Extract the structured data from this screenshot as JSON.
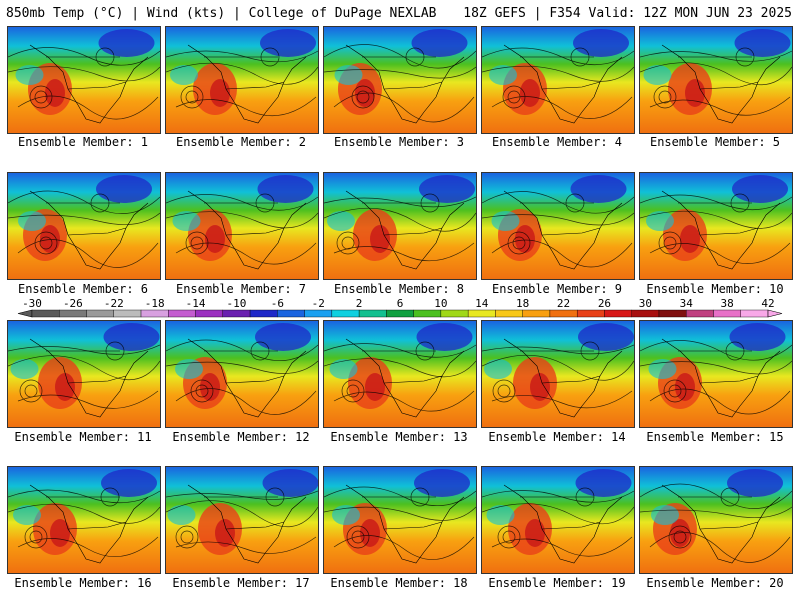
{
  "header": {
    "left": "850mb Temp (°C) | Wind (kts) | College of DuPage NEXLAB",
    "right": "18Z GEFS | F354 Valid: 12Z MON JUN 23 2025"
  },
  "member_prefix": "Ensemble Member: ",
  "members": [
    1,
    2,
    3,
    4,
    5,
    6,
    7,
    8,
    9,
    10,
    11,
    12,
    13,
    14,
    15,
    16,
    17,
    18,
    19,
    20
  ],
  "colorbar": {
    "ticks": [
      "-30",
      "-26",
      "-22",
      "-18",
      "-14",
      "-10",
      "-6",
      "-2",
      "2",
      "6",
      "10",
      "14",
      "18",
      "22",
      "26",
      "30",
      "34",
      "38",
      "42"
    ],
    "colors": [
      "#5a5a5a",
      "#7a7a7a",
      "#9a9a9a",
      "#bcbcbc",
      "#d8a0e0",
      "#c45cd0",
      "#9b30c0",
      "#6a20b0",
      "#1e28c8",
      "#1a64e0",
      "#1aa0f0",
      "#10d0e0",
      "#12c090",
      "#10a040",
      "#4cc020",
      "#a0d818",
      "#e8e820",
      "#f8c818",
      "#f8a010",
      "#f07010",
      "#e84018",
      "#d81818",
      "#a81010",
      "#801010",
      "#c04080",
      "#e870c8",
      "#f8a8e8"
    ]
  }
}
